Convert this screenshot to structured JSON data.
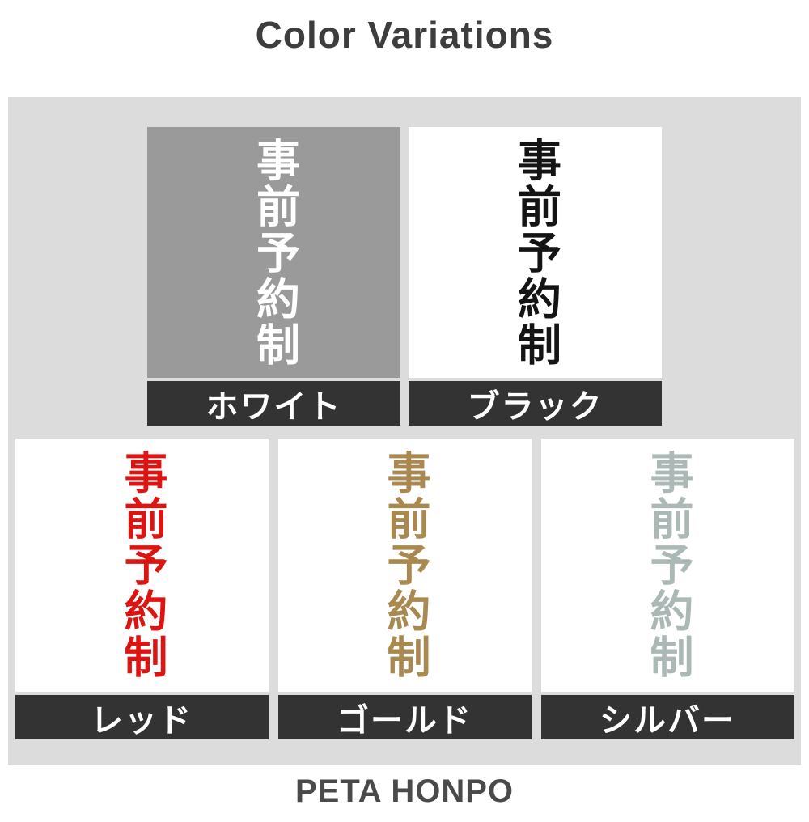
{
  "page": {
    "title": "Color Variations",
    "footer": "PETA HONPO"
  },
  "sample_text": "事前予約制",
  "colors": {
    "page_bg": "#ffffff",
    "panel_bg": "#dcdcdc",
    "title_text": "#3d3d3d",
    "footer_text": "#4a4a4a",
    "label_bar_bg": "#333333",
    "label_text": "#ffffff"
  },
  "variations": [
    {
      "name": "White",
      "label": "ホワイト",
      "swatch_bg": "#9a9a9a",
      "text_color": "#ffffff"
    },
    {
      "name": "Black",
      "label": "ブラック",
      "swatch_bg": "#ffffff",
      "text_color": "#141414"
    },
    {
      "name": "Red",
      "label": "レッド",
      "swatch_bg": "#ffffff",
      "text_color": "#dd1512"
    },
    {
      "name": "Gold",
      "label": "ゴールド",
      "swatch_bg": "#ffffff",
      "text_color": "#a98950"
    },
    {
      "name": "Silver",
      "label": "シルバー",
      "swatch_bg": "#ffffff",
      "text_color": "#acb8b5"
    }
  ]
}
